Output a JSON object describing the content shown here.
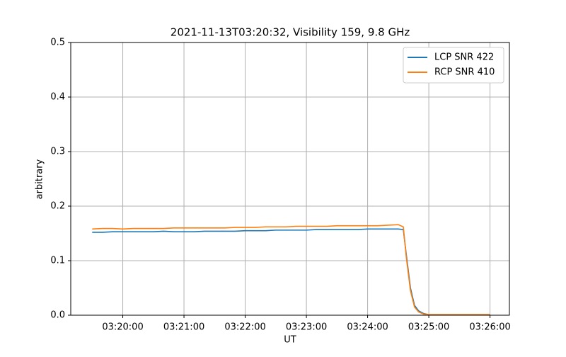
{
  "chart_data": {
    "type": "line",
    "title": "2021-11-13T03:20:32, Visibility 159, 9.8 GHz",
    "xlabel": "UT",
    "ylabel": "arbitrary",
    "x": [
      "03:19:30",
      "03:19:40",
      "03:19:50",
      "03:20:00",
      "03:20:10",
      "03:20:20",
      "03:20:30",
      "03:20:40",
      "03:20:50",
      "03:21:00",
      "03:21:10",
      "03:21:20",
      "03:21:30",
      "03:21:40",
      "03:21:50",
      "03:22:00",
      "03:22:10",
      "03:22:20",
      "03:22:30",
      "03:22:40",
      "03:22:50",
      "03:23:00",
      "03:23:10",
      "03:23:20",
      "03:23:30",
      "03:23:40",
      "03:23:50",
      "03:24:00",
      "03:24:10",
      "03:24:20",
      "03:24:30",
      "03:24:35",
      "03:24:38",
      "03:24:42",
      "03:24:46",
      "03:24:50",
      "03:24:55",
      "03:25:00",
      "03:25:10",
      "03:25:20",
      "03:25:30",
      "03:25:40",
      "03:25:50",
      "03:26:00"
    ],
    "series": [
      {
        "name": "LCP SNR 422",
        "color": "#1f77b4",
        "values": [
          0.152,
          0.152,
          0.153,
          0.153,
          0.153,
          0.153,
          0.153,
          0.154,
          0.153,
          0.153,
          0.153,
          0.154,
          0.154,
          0.154,
          0.154,
          0.155,
          0.155,
          0.155,
          0.156,
          0.156,
          0.156,
          0.156,
          0.157,
          0.157,
          0.157,
          0.157,
          0.157,
          0.158,
          0.158,
          0.158,
          0.158,
          0.157,
          0.11,
          0.05,
          0.018,
          0.008,
          0.003,
          0.001,
          0.001,
          0.001,
          0.001,
          0.001,
          0.001,
          0.001
        ]
      },
      {
        "name": "RCP SNR 410",
        "color": "#ff7f0e",
        "values": [
          0.158,
          0.159,
          0.159,
          0.158,
          0.159,
          0.159,
          0.159,
          0.159,
          0.16,
          0.16,
          0.16,
          0.16,
          0.16,
          0.16,
          0.161,
          0.161,
          0.161,
          0.162,
          0.162,
          0.162,
          0.163,
          0.163,
          0.163,
          0.163,
          0.164,
          0.164,
          0.164,
          0.164,
          0.164,
          0.165,
          0.166,
          0.162,
          0.105,
          0.045,
          0.015,
          0.006,
          0.002,
          0.001,
          0.001,
          0.001,
          0.001,
          0.001,
          0.001,
          0.001
        ]
      }
    ],
    "xlim": [
      "03:19:09",
      "03:26:19"
    ],
    "xticks": [
      "03:20:00",
      "03:21:00",
      "03:22:00",
      "03:23:00",
      "03:24:00",
      "03:25:00",
      "03:26:00"
    ],
    "ylim": [
      0,
      0.5
    ],
    "yticks": [
      {
        "value": 0,
        "label": "0.0"
      },
      0.1,
      0.2,
      0.3,
      0.4,
      0.5
    ],
    "grid": true,
    "legend": "upper right"
  }
}
